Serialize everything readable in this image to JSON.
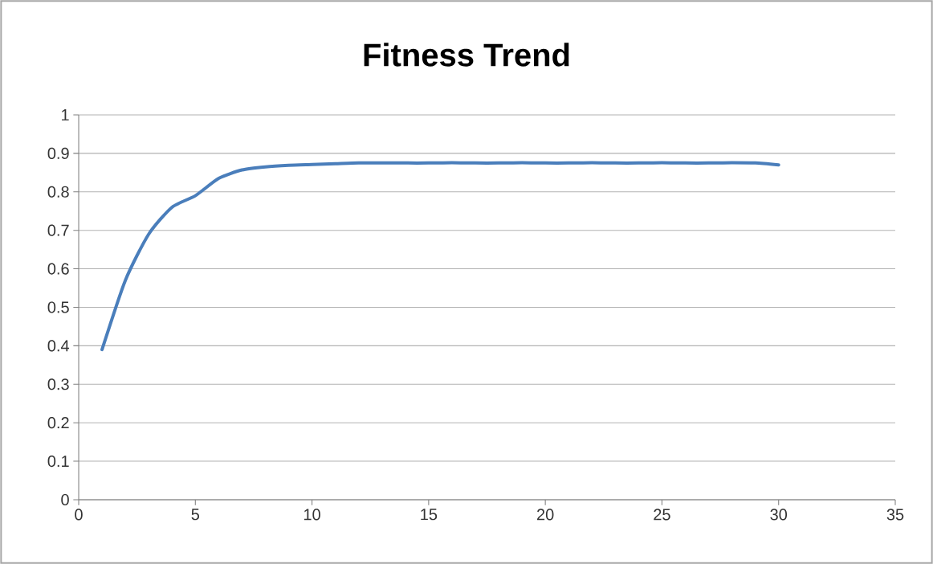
{
  "chart_data": {
    "type": "line",
    "title": "Fitness Trend",
    "x": [
      1,
      2,
      3,
      4,
      5,
      6,
      7,
      8,
      9,
      10,
      11,
      12,
      13,
      14,
      15,
      16,
      17,
      18,
      19,
      20,
      21,
      22,
      23,
      24,
      25,
      26,
      27,
      28,
      29,
      30
    ],
    "series": [
      {
        "color": "#4a7ebb",
        "values": [
          0.39,
          0.57,
          0.69,
          0.76,
          0.79,
          0.835,
          0.857,
          0.865,
          0.869,
          0.871,
          0.873,
          0.875,
          0.875,
          0.875,
          0.875,
          0.876,
          0.875,
          0.875,
          0.876,
          0.875,
          0.875,
          0.876,
          0.875,
          0.875,
          0.876,
          0.875,
          0.875,
          0.876,
          0.875,
          0.87
        ]
      }
    ],
    "xlim": [
      0,
      35
    ],
    "xticks": [
      0,
      5,
      10,
      15,
      20,
      25,
      30,
      35
    ],
    "ylim": [
      0,
      1
    ],
    "yticks": [
      0,
      0.1,
      0.2,
      0.3,
      0.4,
      0.5,
      0.6,
      0.7,
      0.8,
      0.9,
      1
    ],
    "grid": "y",
    "marker": "none",
    "line_style": "solid"
  }
}
